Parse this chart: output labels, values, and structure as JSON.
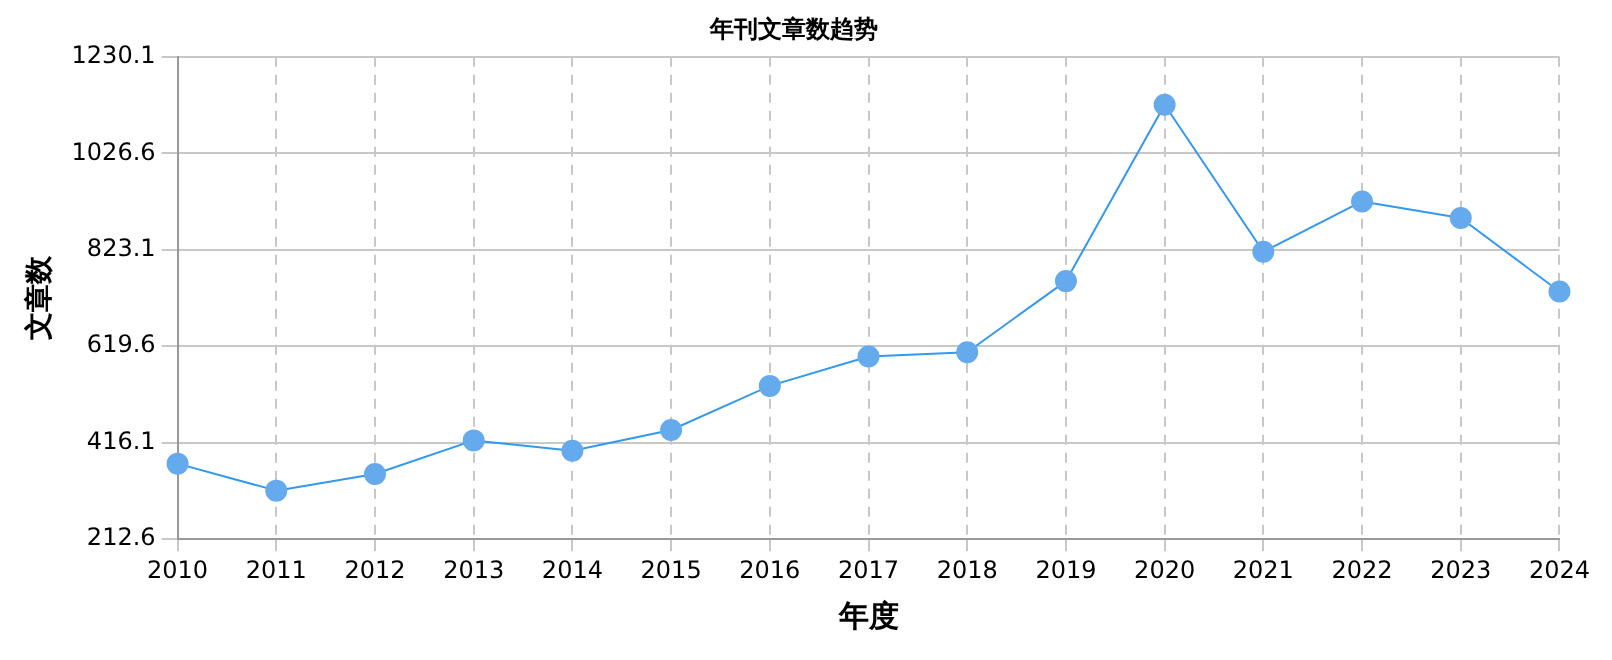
{
  "chart_data": {
    "type": "line",
    "title": "年刊文章数趋势",
    "xlabel": "年度",
    "ylabel": "文章数",
    "categories": [
      "2010",
      "2011",
      "2012",
      "2013",
      "2014",
      "2015",
      "2016",
      "2017",
      "2018",
      "2019",
      "2020",
      "2021",
      "2022",
      "2023",
      "2024"
    ],
    "series": [
      {
        "color": "#3399ee",
        "values": [
          372,
          315,
          350,
          421,
          399,
          443,
          536,
          598,
          607,
          757,
          1129,
          819,
          925,
          890,
          735
        ]
      }
    ],
    "ylim": [
      212.6,
      1230.1
    ],
    "yticks": [
      212.6,
      416.1,
      619.6,
      823.1,
      1026.6,
      1230.1
    ],
    "grid": true,
    "legend": false,
    "marker": "circle",
    "line_style": "solid"
  }
}
